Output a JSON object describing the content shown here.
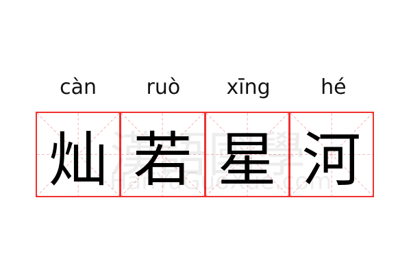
{
  "pinyin": [
    "càn",
    "ruò",
    "xīng",
    "hé"
  ],
  "characters": [
    "灿",
    "若",
    "星",
    "河"
  ],
  "watermark": {
    "chinese": "漢語國學",
    "latin": "HanYuGuoXue.com"
  },
  "colors": {
    "grid_border": "#f03030",
    "guide_lines": "#f5a0a0",
    "text": "#000000"
  }
}
